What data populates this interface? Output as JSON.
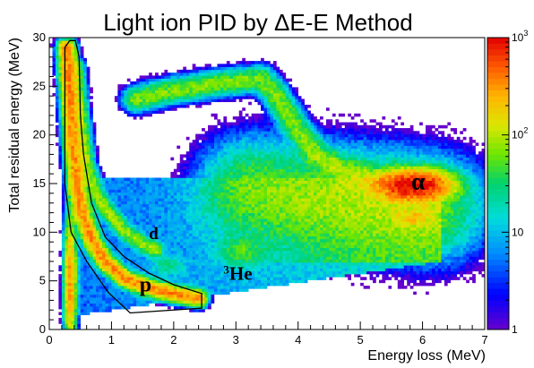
{
  "chart_data": {
    "type": "heatmap",
    "title": "Light ion PID by ΔE-E Method",
    "xlabel": "Energy loss (MeV)",
    "ylabel": "Total residual energy (MeV)",
    "xlim": [
      0,
      7
    ],
    "ylim": [
      0,
      30
    ],
    "x_ticks": [
      0,
      1,
      2,
      3,
      4,
      5,
      6,
      7
    ],
    "y_ticks": [
      0,
      5,
      10,
      15,
      20,
      25,
      30
    ],
    "colorbar": {
      "scale": "log",
      "range": [
        1,
        1000
      ],
      "ticks": [
        {
          "value": 1,
          "label": "1",
          "sup": ""
        },
        {
          "value": 10,
          "label": "10",
          "sup": ""
        },
        {
          "value": 100,
          "label": "10",
          "sup": "2"
        },
        {
          "value": 1000,
          "label": "10",
          "sup": "3"
        }
      ]
    },
    "bands": [
      {
        "name": "p",
        "label": "p",
        "label_pos": [
          1.45,
          3.9
        ],
        "label_size": 24,
        "points": [
          [
            0.28,
            29
          ],
          [
            0.33,
            24
          ],
          [
            0.38,
            19
          ],
          [
            0.45,
            14.5
          ],
          [
            0.55,
            11.5
          ],
          [
            0.7,
            9
          ],
          [
            0.9,
            7
          ],
          [
            1.2,
            5.3
          ],
          [
            1.6,
            4.3
          ],
          [
            2.0,
            3.7
          ],
          [
            2.4,
            3.2
          ]
        ],
        "width": 0.07,
        "peak": 350
      },
      {
        "name": "d",
        "label": "d",
        "label_pos": [
          1.6,
          9.3
        ],
        "label_size": 19,
        "points": [
          [
            0.42,
            27
          ],
          [
            0.5,
            22
          ],
          [
            0.6,
            17
          ],
          [
            0.75,
            14
          ],
          [
            0.95,
            12
          ],
          [
            1.2,
            10.2
          ],
          [
            1.5,
            8.8
          ],
          [
            1.7,
            8.2
          ]
        ],
        "width": 0.07,
        "peak": 80
      },
      {
        "name": "3He",
        "label": "He",
        "label_sup": "3",
        "label_pos": [
          2.8,
          5.1
        ],
        "label_size": 21,
        "points": [
          [
            1.4,
            23.7
          ],
          [
            2.0,
            24.6
          ],
          [
            2.7,
            25.3
          ],
          [
            3.4,
            25.8
          ],
          [
            3.6,
            24.5
          ],
          [
            4.0,
            20.5
          ],
          [
            4.3,
            18
          ],
          [
            4.7,
            16.5
          ],
          [
            5.2,
            15.4
          ],
          [
            5.7,
            15
          ],
          [
            6.1,
            14.8
          ]
        ],
        "width": 0.11,
        "peak": 70
      },
      {
        "name": "alpha",
        "label": "α",
        "label_pos": [
          5.82,
          14.4
        ],
        "label_size": 27,
        "points": [
          [
            3.3,
            14.2
          ],
          [
            4.0,
            13.8
          ],
          [
            4.8,
            13.4
          ],
          [
            5.5,
            13.0
          ],
          [
            6.1,
            12.5
          ]
        ],
        "width": 0.45,
        "peak": 60
      }
    ],
    "hotspots": [
      {
        "x": 5.85,
        "y": 14.8,
        "rx": 0.3,
        "ry": 0.8,
        "peak": 1000
      },
      {
        "x": 5.85,
        "y": 11.5,
        "rx": 0.15,
        "ry": 0.5,
        "peak": 150
      },
      {
        "x": 3.1,
        "y": 8.0,
        "rx": 0.2,
        "ry": 0.9,
        "peak": 40
      },
      {
        "x": 1.9,
        "y": 6.6,
        "rx": 0.15,
        "ry": 0.6,
        "peak": 20
      },
      {
        "x": 0.34,
        "y": 5,
        "rx": 0.05,
        "ry": 3.5,
        "peak": 300
      }
    ],
    "cut_polygon": [
      [
        0.33,
        29.7
      ],
      [
        0.42,
        29.7
      ],
      [
        0.48,
        28
      ],
      [
        0.5,
        22
      ],
      [
        0.55,
        18
      ],
      [
        0.68,
        13
      ],
      [
        0.9,
        9.5
      ],
      [
        1.2,
        7.5
      ],
      [
        1.6,
        5.8
      ],
      [
        2.0,
        4.6
      ],
      [
        2.45,
        3.7
      ],
      [
        2.45,
        2.2
      ],
      [
        1.3,
        1.7
      ],
      [
        0.95,
        3.8
      ],
      [
        0.6,
        7
      ],
      [
        0.35,
        10
      ],
      [
        0.25,
        15
      ],
      [
        0.25,
        29
      ]
    ]
  }
}
